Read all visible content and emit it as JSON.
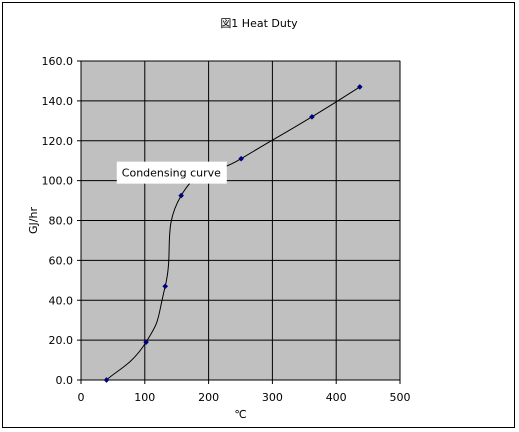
{
  "chart_data": {
    "type": "scatter",
    "title": "図1 Heat Duty",
    "xlabel": "℃",
    "ylabel": "GJ/hr",
    "xlim": [
      0,
      500
    ],
    "ylim": [
      0,
      160
    ],
    "x_ticks": [
      0,
      100,
      200,
      300,
      400,
      500
    ],
    "y_ticks": [
      "0.0",
      "20.0",
      "40.0",
      "60.0",
      "80.0",
      "100.0",
      "120.0",
      "140.0",
      "160.0"
    ],
    "grid": true,
    "plot_background": "#c0c0c0",
    "marker_color": "#000080",
    "line_color": "#000000",
    "series": [
      {
        "x": [
          40,
          102,
          132,
          157,
          251,
          362,
          437
        ],
        "y": [
          0,
          19,
          47,
          92.5,
          111,
          132,
          147
        ]
      }
    ],
    "annotation": {
      "text": "Condensing curve",
      "x": 147,
      "y": 104
    }
  }
}
